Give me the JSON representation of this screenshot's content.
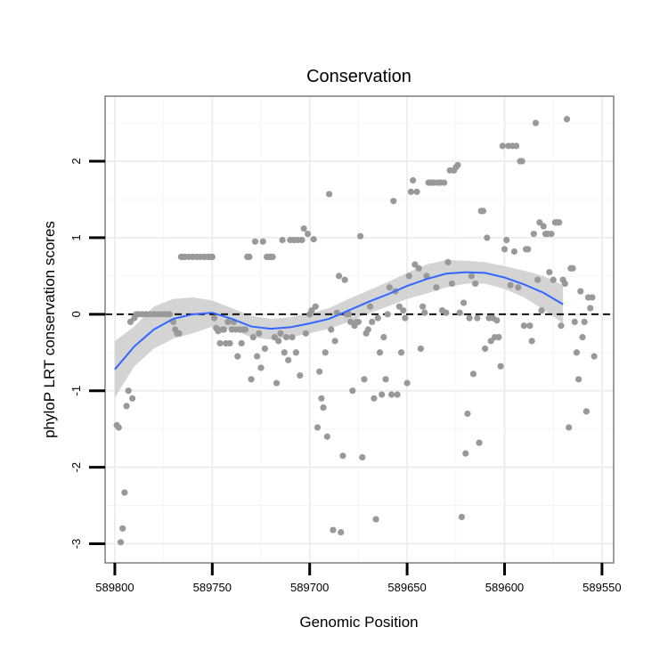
{
  "chart_data": {
    "type": "scatter",
    "title": "Conservation",
    "xlabel": "Genomic Position",
    "ylabel": "phyloP LRT conservation scores",
    "x_reversed": true,
    "xlim": [
      589805,
      589544
    ],
    "ylim": [
      -3.25,
      2.85
    ],
    "x_ticks": [
      589800,
      589750,
      589700,
      589650,
      589600,
      589550
    ],
    "x_tick_labels": [
      "589800",
      "589750",
      "589700",
      "589650",
      "589600",
      "589550"
    ],
    "y_ticks": [
      -3,
      -2,
      -1,
      0,
      1,
      2
    ],
    "y_tick_labels": [
      "-3",
      "-2",
      "-1",
      "0",
      "1",
      "2"
    ],
    "grid": true,
    "reference_line": {
      "y": 0,
      "style": "dashed",
      "color": "#000000"
    },
    "point_color": "#999999",
    "smooth_color": "#3366ff",
    "band_color": "#cccccc",
    "points": [
      [
        589799,
        -1.45
      ],
      [
        589798,
        -1.48
      ],
      [
        589797,
        -2.98
      ],
      [
        589796,
        -2.8
      ],
      [
        589795,
        -2.33
      ],
      [
        589794,
        -1.2
      ],
      [
        589793,
        -1.0
      ],
      [
        589792,
        -0.1
      ],
      [
        589791,
        -1.1
      ],
      [
        589790,
        -0.05
      ],
      [
        589789,
        0.0
      ],
      [
        589788,
        0.0
      ],
      [
        589786,
        0.0
      ],
      [
        589784,
        0.0
      ],
      [
        589782,
        0.0
      ],
      [
        589780,
        0.0
      ],
      [
        589778,
        0.0
      ],
      [
        589776,
        0.0
      ],
      [
        589774,
        0.0
      ],
      [
        589772,
        0.0
      ],
      [
        589770,
        -0.1
      ],
      [
        589769,
        -0.2
      ],
      [
        589768,
        -0.25
      ],
      [
        589767,
        -0.25
      ],
      [
        589766,
        0.75
      ],
      [
        589765,
        0.75
      ],
      [
        589764,
        0.75
      ],
      [
        589762,
        0.75
      ],
      [
        589760,
        0.75
      ],
      [
        589758,
        0.75
      ],
      [
        589756,
        0.75
      ],
      [
        589754,
        0.75
      ],
      [
        589752,
        0.75
      ],
      [
        589751,
        0.75
      ],
      [
        589750,
        0.75
      ],
      [
        589749,
        -0.05
      ],
      [
        589748,
        -0.18
      ],
      [
        589747,
        -0.22
      ],
      [
        589746,
        -0.38
      ],
      [
        589745,
        -0.2
      ],
      [
        589744,
        -0.2
      ],
      [
        589743,
        -0.38
      ],
      [
        589742,
        -0.1
      ],
      [
        589741,
        -0.38
      ],
      [
        589740,
        -0.2
      ],
      [
        589739,
        -0.1
      ],
      [
        589738,
        -0.2
      ],
      [
        589737,
        -0.55
      ],
      [
        589736,
        -0.2
      ],
      [
        589735,
        -0.38
      ],
      [
        589734,
        -0.2
      ],
      [
        589733,
        -0.2
      ],
      [
        589732,
        0.75
      ],
      [
        589731,
        0.75
      ],
      [
        589730,
        -0.85
      ],
      [
        589729,
        -0.3
      ],
      [
        589728,
        0.95
      ],
      [
        589727,
        -0.55
      ],
      [
        589726,
        -0.25
      ],
      [
        589725,
        -0.7
      ],
      [
        589724,
        0.95
      ],
      [
        589723,
        -0.45
      ],
      [
        589722,
        0.75
      ],
      [
        589721,
        0.75
      ],
      [
        589720,
        0.75
      ],
      [
        589719,
        0.75
      ],
      [
        589718,
        -0.3
      ],
      [
        589717,
        -0.9
      ],
      [
        589716,
        -0.35
      ],
      [
        589715,
        -0.25
      ],
      [
        589714,
        0.97
      ],
      [
        589713,
        -0.5
      ],
      [
        589712,
        -0.3
      ],
      [
        589711,
        -0.6
      ],
      [
        589710,
        0.97
      ],
      [
        589709,
        -0.3
      ],
      [
        589708,
        0.97
      ],
      [
        589707,
        -0.5
      ],
      [
        589706,
        0.97
      ],
      [
        589705,
        -0.8
      ],
      [
        589704,
        0.97
      ],
      [
        589703,
        1.12
      ],
      [
        589702,
        -0.25
      ],
      [
        589701,
        1.05
      ],
      [
        589700,
        0.0
      ],
      [
        589699,
        0.05
      ],
      [
        589698,
        0.98
      ],
      [
        589697,
        0.1
      ],
      [
        589696,
        -1.48
      ],
      [
        589695,
        -0.75
      ],
      [
        589694,
        -1.1
      ],
      [
        589693,
        -1.22
      ],
      [
        589692,
        -0.5
      ],
      [
        589691,
        -1.6
      ],
      [
        589690,
        1.57
      ],
      [
        589689,
        -0.2
      ],
      [
        589688,
        -2.82
      ],
      [
        589687,
        -0.35
      ],
      [
        589686,
        0.02
      ],
      [
        589685,
        0.5
      ],
      [
        589684,
        -2.85
      ],
      [
        589683,
        -1.85
      ],
      [
        589682,
        0.45
      ],
      [
        589681,
        0.0
      ],
      [
        589680,
        0.0
      ],
      [
        589679,
        -0.1
      ],
      [
        589678,
        -1.0
      ],
      [
        589677,
        -0.15
      ],
      [
        589676,
        -0.1
      ],
      [
        589675,
        -0.1
      ],
      [
        589674,
        1.02
      ],
      [
        589673,
        -1.87
      ],
      [
        589672,
        -0.85
      ],
      [
        589671,
        -0.25
      ],
      [
        589670,
        -0.2
      ],
      [
        589669,
        0.1
      ],
      [
        589668,
        -0.1
      ],
      [
        589667,
        -1.1
      ],
      [
        589666,
        -2.68
      ],
      [
        589665,
        -0.05
      ],
      [
        589664,
        -0.5
      ],
      [
        589663,
        -1.05
      ],
      [
        589662,
        -0.3
      ],
      [
        589661,
        -0.85
      ],
      [
        589660,
        0.0
      ],
      [
        589659,
        0.35
      ],
      [
        589658,
        -1.05
      ],
      [
        589657,
        1.48
      ],
      [
        589656,
        0.3
      ],
      [
        589655,
        -1.05
      ],
      [
        589654,
        0.1
      ],
      [
        589653,
        -0.5
      ],
      [
        589652,
        0.05
      ],
      [
        589651,
        -0.05
      ],
      [
        589650,
        -0.9
      ],
      [
        589649,
        0.5
      ],
      [
        589648,
        1.6
      ],
      [
        589647,
        1.75
      ],
      [
        589646,
        0.65
      ],
      [
        589645,
        1.6
      ],
      [
        589644,
        0.6
      ],
      [
        589643,
        -0.45
      ],
      [
        589642,
        0.1
      ],
      [
        589641,
        0.02
      ],
      [
        589640,
        0.5
      ],
      [
        589639,
        1.72
      ],
      [
        589638,
        1.72
      ],
      [
        589637,
        1.72
      ],
      [
        589636,
        1.72
      ],
      [
        589635,
        0.35
      ],
      [
        589634,
        1.72
      ],
      [
        589633,
        1.72
      ],
      [
        589632,
        0.05
      ],
      [
        589631,
        1.72
      ],
      [
        589630,
        0.02
      ],
      [
        589629,
        0.68
      ],
      [
        589628,
        1.88
      ],
      [
        589627,
        0.4
      ],
      [
        589626,
        1.88
      ],
      [
        589625,
        1.92
      ],
      [
        589624,
        1.95
      ],
      [
        589623,
        0.02
      ],
      [
        589622,
        -2.65
      ],
      [
        589621,
        0.15
      ],
      [
        589620,
        -1.82
      ],
      [
        589619,
        -1.3
      ],
      [
        589618,
        -0.05
      ],
      [
        589617,
        0.5
      ],
      [
        589616,
        -0.78
      ],
      [
        589615,
        0.4
      ],
      [
        589614,
        -0.05
      ],
      [
        589613,
        -1.68
      ],
      [
        589612,
        1.35
      ],
      [
        589611,
        1.35
      ],
      [
        589610,
        -0.45
      ],
      [
        589609,
        1.0
      ],
      [
        589608,
        -0.05
      ],
      [
        589607,
        -0.35
      ],
      [
        589606,
        -0.05
      ],
      [
        589605,
        -0.3
      ],
      [
        589604,
        -0.08
      ],
      [
        589603,
        -0.3
      ],
      [
        589602,
        -0.68
      ],
      [
        589601,
        2.2
      ],
      [
        589600,
        0.85
      ],
      [
        589599,
        0.97
      ],
      [
        589598,
        2.2
      ],
      [
        589597,
        0.38
      ],
      [
        589596,
        2.2
      ],
      [
        589595,
        0.82
      ],
      [
        589594,
        2.2
      ],
      [
        589593,
        0.35
      ],
      [
        589592,
        2.0
      ],
      [
        589591,
        2.0
      ],
      [
        589590,
        -0.15
      ],
      [
        589589,
        0.85
      ],
      [
        589588,
        0.85
      ],
      [
        589587,
        -0.15
      ],
      [
        589586,
        -0.35
      ],
      [
        589585,
        1.05
      ],
      [
        589584,
        2.5
      ],
      [
        589583,
        0.45
      ],
      [
        589582,
        1.2
      ],
      [
        589581,
        0.05
      ],
      [
        589580,
        1.15
      ],
      [
        589579,
        1.05
      ],
      [
        589578,
        1.05
      ],
      [
        589577,
        0.55
      ],
      [
        589576,
        1.05
      ],
      [
        589575,
        0.45
      ],
      [
        589574,
        1.2
      ],
      [
        589573,
        1.2
      ],
      [
        589572,
        1.2
      ],
      [
        589571,
        -0.15
      ],
      [
        589570,
        0.45
      ],
      [
        589569,
        0.4
      ],
      [
        589568,
        2.55
      ],
      [
        589567,
        -1.48
      ],
      [
        589566,
        0.6
      ],
      [
        589565,
        0.6
      ],
      [
        589564,
        -0.1
      ],
      [
        589563,
        -0.5
      ],
      [
        589562,
        -0.85
      ],
      [
        589561,
        0.3
      ],
      [
        589560,
        -0.3
      ],
      [
        589559,
        -0.1
      ],
      [
        589558,
        -1.27
      ],
      [
        589557,
        0.22
      ],
      [
        589556,
        0.08
      ],
      [
        589555,
        0.22
      ],
      [
        589554,
        -0.55
      ]
    ],
    "smooth_line": [
      [
        589800,
        -0.72
      ],
      [
        589790,
        -0.42
      ],
      [
        589780,
        -0.2
      ],
      [
        589770,
        -0.06
      ],
      [
        589760,
        0.0
      ],
      [
        589750,
        0.02
      ],
      [
        589740,
        -0.06
      ],
      [
        589730,
        -0.16
      ],
      [
        589720,
        -0.19
      ],
      [
        589710,
        -0.17
      ],
      [
        589700,
        -0.12
      ],
      [
        589690,
        -0.06
      ],
      [
        589680,
        0.05
      ],
      [
        589670,
        0.16
      ],
      [
        589660,
        0.26
      ],
      [
        589650,
        0.37
      ],
      [
        589640,
        0.46
      ],
      [
        589630,
        0.53
      ],
      [
        589620,
        0.55
      ],
      [
        589610,
        0.54
      ],
      [
        589600,
        0.48
      ],
      [
        589590,
        0.39
      ],
      [
        589580,
        0.28
      ],
      [
        589570,
        0.13
      ]
    ],
    "band_upper": [
      [
        589800,
        -0.35
      ],
      [
        589790,
        -0.16
      ],
      [
        589780,
        0.1
      ],
      [
        589770,
        0.2
      ],
      [
        589760,
        0.22
      ],
      [
        589750,
        0.18
      ],
      [
        589740,
        0.08
      ],
      [
        589730,
        -0.02
      ],
      [
        589720,
        -0.06
      ],
      [
        589710,
        -0.04
      ],
      [
        589700,
        0.01
      ],
      [
        589690,
        0.08
      ],
      [
        589680,
        0.2
      ],
      [
        589670,
        0.31
      ],
      [
        589660,
        0.42
      ],
      [
        589650,
        0.54
      ],
      [
        589640,
        0.65
      ],
      [
        589630,
        0.71
      ],
      [
        589620,
        0.7
      ],
      [
        589610,
        0.68
      ],
      [
        589600,
        0.63
      ],
      [
        589590,
        0.57
      ],
      [
        589580,
        0.5
      ],
      [
        589570,
        0.38
      ]
    ],
    "band_lower": [
      [
        589800,
        -1.09
      ],
      [
        589790,
        -0.68
      ],
      [
        589780,
        -0.45
      ],
      [
        589770,
        -0.32
      ],
      [
        589760,
        -0.25
      ],
      [
        589750,
        -0.16
      ],
      [
        589740,
        -0.2
      ],
      [
        589730,
        -0.3
      ],
      [
        589720,
        -0.33
      ],
      [
        589710,
        -0.3
      ],
      [
        589700,
        -0.25
      ],
      [
        589690,
        -0.19
      ],
      [
        589680,
        -0.1
      ],
      [
        589670,
        0.01
      ],
      [
        589660,
        0.1
      ],
      [
        589650,
        0.2
      ],
      [
        589640,
        0.27
      ],
      [
        589630,
        0.35
      ],
      [
        589620,
        0.4
      ],
      [
        589610,
        0.4
      ],
      [
        589600,
        0.33
      ],
      [
        589590,
        0.22
      ],
      [
        589580,
        0.06
      ],
      [
        589570,
        -0.12
      ]
    ]
  }
}
